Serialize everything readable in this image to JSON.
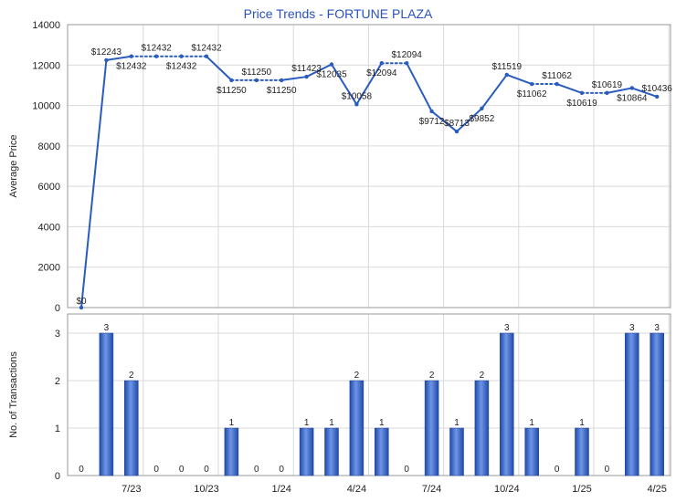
{
  "chart_data": [
    {
      "type": "line",
      "title": "Price Trends - FORTUNE PLAZA",
      "ylabel": "Average Price",
      "ylim": [
        0,
        14000
      ],
      "yticks": [
        0,
        2000,
        4000,
        6000,
        8000,
        10000,
        12000,
        14000
      ],
      "ytick_labels": [
        "0",
        "2000",
        "4000",
        "6000",
        "8000",
        "10000",
        "12000",
        "14000"
      ],
      "x": [
        "2023-05",
        "2023-06",
        "2023-07",
        "2023-08",
        "2023-09",
        "2023-10",
        "2023-11",
        "2023-12",
        "2024-01",
        "2024-02",
        "2024-03",
        "2024-04",
        "2024-05",
        "2024-06",
        "2024-07",
        "2024-08",
        "2024-09",
        "2024-10",
        "2024-11",
        "2024-12",
        "2025-01",
        "2025-02",
        "2025-03",
        "2025-04"
      ],
      "values": [
        0,
        12243,
        12432,
        12432,
        12432,
        12432,
        11250,
        11250,
        11250,
        11423,
        12035,
        10058,
        12094,
        12094,
        9712,
        8713,
        9852,
        11519,
        11062,
        11062,
        10619,
        10619,
        10864,
        10436
      ],
      "labels": [
        "$0",
        "$12243",
        "$12432",
        "$12432",
        "$12432",
        "$12432",
        "$11250",
        "$11250",
        "$11250",
        "$11423",
        "$12035",
        "$10058",
        "$12094",
        "$12094",
        "$9712",
        "$8713",
        "$9852",
        "$11519",
        "$11062",
        "$11062",
        "$10619",
        "$10619",
        "$10864",
        "$10436"
      ],
      "grid": true,
      "line_color": "#2a5cc0"
    },
    {
      "type": "bar",
      "ylabel": "No. of Transactions",
      "ylim": [
        0,
        3
      ],
      "yticks": [
        0,
        1,
        2,
        3
      ],
      "ytick_labels": [
        "0",
        "1",
        "2",
        "3"
      ],
      "categories": [
        "2023-05",
        "2023-06",
        "2023-07",
        "2023-08",
        "2023-09",
        "2023-10",
        "2023-11",
        "2023-12",
        "2024-01",
        "2024-02",
        "2024-03",
        "2024-04",
        "2024-05",
        "2024-06",
        "2024-07",
        "2024-08",
        "2024-09",
        "2024-10",
        "2024-11",
        "2024-12",
        "2025-01",
        "2025-02",
        "2025-03",
        "2025-04"
      ],
      "values": [
        0,
        3,
        2,
        0,
        0,
        0,
        1,
        0,
        0,
        1,
        1,
        2,
        1,
        0,
        2,
        1,
        2,
        3,
        1,
        0,
        1,
        0,
        3,
        3
      ],
      "xtick_labels": [
        {
          "at": "2023-07",
          "label": "7/23"
        },
        {
          "at": "2023-10",
          "label": "10/23"
        },
        {
          "at": "2024-01",
          "label": "1/24"
        },
        {
          "at": "2024-04",
          "label": "4/24"
        },
        {
          "at": "2024-07",
          "label": "7/24"
        },
        {
          "at": "2024-10",
          "label": "10/24"
        },
        {
          "at": "2025-01",
          "label": "1/25"
        },
        {
          "at": "2025-04",
          "label": "4/25"
        }
      ],
      "grid": true,
      "bar_color": "#2f5fc4"
    }
  ]
}
